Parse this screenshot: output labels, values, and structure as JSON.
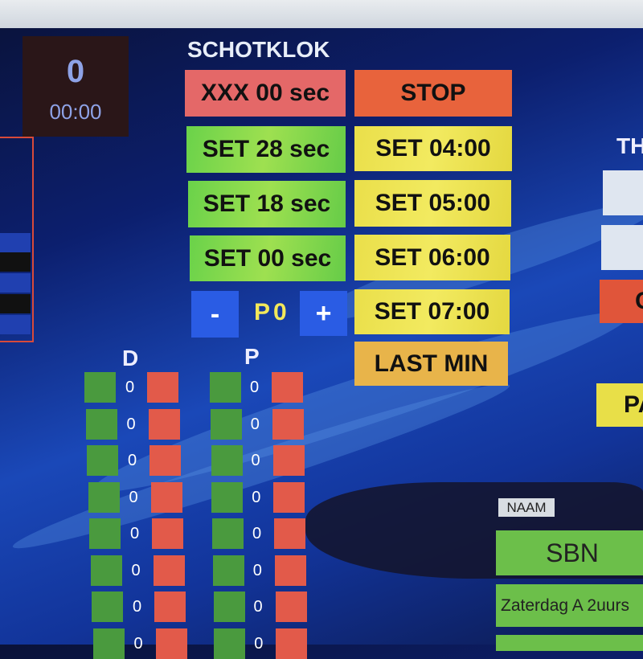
{
  "scoreboard": {
    "score": "0",
    "time": "00:00"
  },
  "shotclock": {
    "title": "SCHOTKLOK",
    "left_buttons": [
      "XXX 00 sec",
      "SET 28 sec",
      "SET 18 sec",
      "SET 00 sec"
    ],
    "right_buttons": [
      "STOP",
      "SET 04:00",
      "SET 05:00",
      "SET 06:00",
      "SET 07:00",
      "LAST MIN"
    ],
    "minus_label": "-",
    "plus_label": "+",
    "period": "P0"
  },
  "penalties": {
    "d_label": "D",
    "p_label": "P",
    "d_values": [
      "0",
      "0",
      "0",
      "0",
      "0",
      "0",
      "0",
      "0"
    ],
    "p_values": [
      "0",
      "0",
      "0",
      "0",
      "0",
      "0",
      "0",
      "0"
    ]
  },
  "right_panel": {
    "title_partial": "TH",
    "red_button_partial": "C",
    "yellow_button_partial": "PA"
  },
  "name_panel": {
    "label": "NAAM",
    "team": "SBN",
    "match": "Zaterdag A 2uurs"
  },
  "colors": {
    "red": "#e46868",
    "green": "#6ad24a",
    "yellow": "#eadf4a",
    "stop": "#e8633c",
    "blue": "#2a5ce4"
  }
}
